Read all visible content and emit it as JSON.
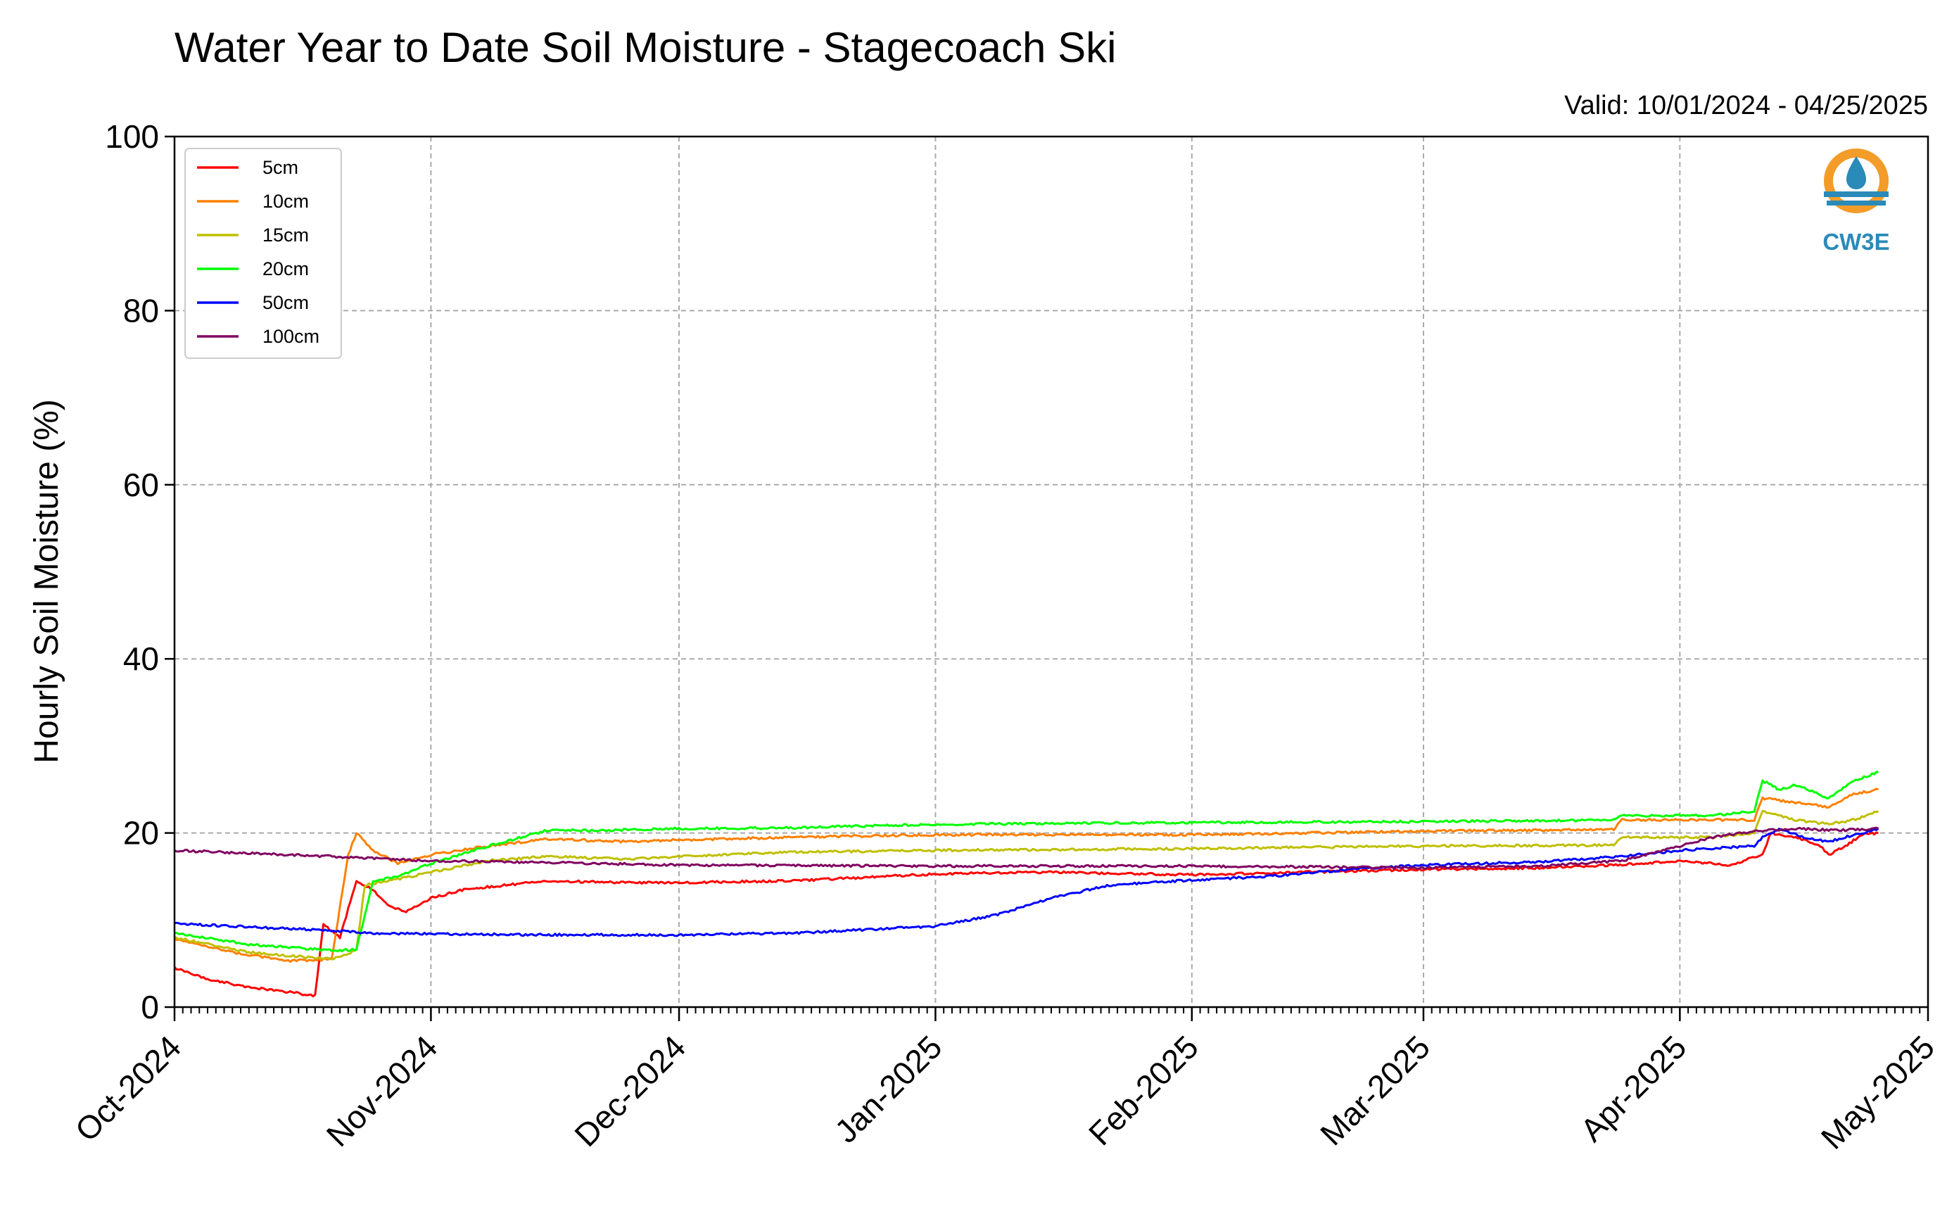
{
  "chart_data": {
    "type": "line",
    "title": "Water Year to Date Soil Moisture - Stagecoach Ski",
    "subtitle": "Valid: 10/01/2024 - 04/25/2025",
    "xlabel": "",
    "ylabel": "Hourly Soil Moisture (%)",
    "xlim": [
      "2024-10-01",
      "2025-05-01"
    ],
    "ylim": [
      0,
      100
    ],
    "yticks": [
      0,
      20,
      40,
      60,
      80,
      100
    ],
    "xticks": [
      {
        "date": "2024-10-01",
        "label": "Oct-2024"
      },
      {
        "date": "2024-11-01",
        "label": "Nov-2024"
      },
      {
        "date": "2024-12-01",
        "label": "Dec-2024"
      },
      {
        "date": "2025-01-01",
        "label": "Jan-2025"
      },
      {
        "date": "2025-02-01",
        "label": "Feb-2025"
      },
      {
        "date": "2025-03-01",
        "label": "Mar-2025"
      },
      {
        "date": "2025-04-01",
        "label": "Apr-2025"
      },
      {
        "date": "2025-05-01",
        "label": "May-2025"
      }
    ],
    "grid": true,
    "legend_position": "top-left",
    "series": [
      {
        "name": "5cm",
        "color": "#ff0000",
        "points": [
          [
            "2024-10-01",
            4.5
          ],
          [
            "2024-10-05",
            3.2
          ],
          [
            "2024-10-10",
            2.3
          ],
          [
            "2024-10-15",
            1.7
          ],
          [
            "2024-10-18",
            1.3
          ],
          [
            "2024-10-19",
            9.5
          ],
          [
            "2024-10-21",
            8.0
          ],
          [
            "2024-10-23",
            14.5
          ],
          [
            "2024-10-25",
            13.5
          ],
          [
            "2024-10-27",
            11.5
          ],
          [
            "2024-10-29",
            11.0
          ],
          [
            "2024-11-01",
            12.5
          ],
          [
            "2024-11-05",
            13.5
          ],
          [
            "2024-11-15",
            14.5
          ],
          [
            "2024-11-25",
            14.3
          ],
          [
            "2024-12-01",
            14.3
          ],
          [
            "2024-12-15",
            14.5
          ],
          [
            "2025-01-01",
            15.3
          ],
          [
            "2025-01-15",
            15.5
          ],
          [
            "2025-02-01",
            15.2
          ],
          [
            "2025-02-15",
            15.5
          ],
          [
            "2025-03-01",
            15.8
          ],
          [
            "2025-03-15",
            16.0
          ],
          [
            "2025-03-24",
            16.3
          ],
          [
            "2025-04-01",
            16.8
          ],
          [
            "2025-04-07",
            16.3
          ],
          [
            "2025-04-11",
            17.5
          ],
          [
            "2025-04-12",
            20.0
          ],
          [
            "2025-04-15",
            19.5
          ],
          [
            "2025-04-18",
            18.5
          ],
          [
            "2025-04-19",
            17.5
          ],
          [
            "2025-04-21",
            18.5
          ],
          [
            "2025-04-23",
            19.8
          ],
          [
            "2025-04-25",
            20.0
          ]
        ]
      },
      {
        "name": "10cm",
        "color": "#ff8000",
        "points": [
          [
            "2024-10-01",
            7.8
          ],
          [
            "2024-10-08",
            6.3
          ],
          [
            "2024-10-15",
            5.3
          ],
          [
            "2024-10-20",
            5.5
          ],
          [
            "2024-10-22",
            17.5
          ],
          [
            "2024-10-23",
            20.0
          ],
          [
            "2024-10-25",
            18.0
          ],
          [
            "2024-10-28",
            16.5
          ],
          [
            "2024-11-01",
            17.5
          ],
          [
            "2024-11-08",
            18.5
          ],
          [
            "2024-11-15",
            19.3
          ],
          [
            "2024-11-25",
            19.0
          ],
          [
            "2024-12-01",
            19.2
          ],
          [
            "2024-12-15",
            19.5
          ],
          [
            "2025-01-01",
            19.8
          ],
          [
            "2025-02-01",
            19.8
          ],
          [
            "2025-03-01",
            20.2
          ],
          [
            "2025-03-24",
            20.4
          ],
          [
            "2025-03-25",
            21.5
          ],
          [
            "2025-04-01",
            21.5
          ],
          [
            "2025-04-10",
            21.5
          ],
          [
            "2025-04-11",
            24.0
          ],
          [
            "2025-04-15",
            23.5
          ],
          [
            "2025-04-19",
            23.0
          ],
          [
            "2025-04-22",
            24.5
          ],
          [
            "2025-04-25",
            25.0
          ]
        ]
      },
      {
        "name": "15cm",
        "color": "#bfbf00",
        "points": [
          [
            "2024-10-01",
            8.0
          ],
          [
            "2024-10-10",
            6.3
          ],
          [
            "2024-10-20",
            5.5
          ],
          [
            "2024-10-23",
            6.5
          ],
          [
            "2024-10-24",
            14.0
          ],
          [
            "2024-10-27",
            14.5
          ],
          [
            "2024-11-01",
            15.5
          ],
          [
            "2024-11-08",
            16.8
          ],
          [
            "2024-11-15",
            17.3
          ],
          [
            "2024-11-25",
            17.0
          ],
          [
            "2024-12-01",
            17.3
          ],
          [
            "2024-12-15",
            17.8
          ],
          [
            "2025-01-01",
            18.0
          ],
          [
            "2025-02-01",
            18.2
          ],
          [
            "2025-03-01",
            18.5
          ],
          [
            "2025-03-24",
            18.6
          ],
          [
            "2025-03-25",
            19.5
          ],
          [
            "2025-04-05",
            19.5
          ],
          [
            "2025-04-10",
            20.0
          ],
          [
            "2025-04-11",
            22.5
          ],
          [
            "2025-04-15",
            21.5
          ],
          [
            "2025-04-19",
            21.0
          ],
          [
            "2025-04-22",
            21.5
          ],
          [
            "2025-04-25",
            22.5
          ]
        ]
      },
      {
        "name": "20cm",
        "color": "#00ff00",
        "points": [
          [
            "2024-10-01",
            8.5
          ],
          [
            "2024-10-10",
            7.2
          ],
          [
            "2024-10-20",
            6.5
          ],
          [
            "2024-10-23",
            6.6
          ],
          [
            "2024-10-25",
            14.5
          ],
          [
            "2024-10-28",
            15.0
          ],
          [
            "2024-11-01",
            16.5
          ],
          [
            "2024-11-08",
            18.5
          ],
          [
            "2024-11-15",
            20.3
          ],
          [
            "2024-11-22",
            20.3
          ],
          [
            "2024-12-01",
            20.5
          ],
          [
            "2024-12-15",
            20.6
          ],
          [
            "2025-01-01",
            21.0
          ],
          [
            "2025-02-01",
            21.2
          ],
          [
            "2025-03-01",
            21.3
          ],
          [
            "2025-03-24",
            21.5
          ],
          [
            "2025-03-25",
            22.0
          ],
          [
            "2025-04-05",
            22.0
          ],
          [
            "2025-04-10",
            22.5
          ],
          [
            "2025-04-11",
            26.0
          ],
          [
            "2025-04-13",
            25.0
          ],
          [
            "2025-04-15",
            25.5
          ],
          [
            "2025-04-19",
            24.0
          ],
          [
            "2025-04-22",
            26.0
          ],
          [
            "2025-04-25",
            27.0
          ]
        ]
      },
      {
        "name": "50cm",
        "color": "#0000ff",
        "points": [
          [
            "2024-10-01",
            9.6
          ],
          [
            "2024-10-10",
            9.2
          ],
          [
            "2024-10-20",
            8.8
          ],
          [
            "2024-10-25",
            8.5
          ],
          [
            "2024-11-01",
            8.4
          ],
          [
            "2024-11-15",
            8.3
          ],
          [
            "2024-12-01",
            8.3
          ],
          [
            "2024-12-15",
            8.5
          ],
          [
            "2025-01-01",
            9.3
          ],
          [
            "2025-01-08",
            10.5
          ],
          [
            "2025-01-15",
            12.5
          ],
          [
            "2025-01-22",
            14.0
          ],
          [
            "2025-02-01",
            14.6
          ],
          [
            "2025-02-10",
            15.0
          ],
          [
            "2025-02-20",
            15.8
          ],
          [
            "2025-03-01",
            16.3
          ],
          [
            "2025-03-15",
            16.7
          ],
          [
            "2025-03-25",
            17.3
          ],
          [
            "2025-04-01",
            18.0
          ],
          [
            "2025-04-10",
            18.5
          ],
          [
            "2025-04-11",
            19.5
          ],
          [
            "2025-04-13",
            20.5
          ],
          [
            "2025-04-16",
            19.5
          ],
          [
            "2025-04-19",
            19.0
          ],
          [
            "2025-04-21",
            19.5
          ],
          [
            "2025-04-25",
            20.5
          ]
        ]
      },
      {
        "name": "100cm",
        "color": "#800060",
        "points": [
          [
            "2024-10-01",
            18.0
          ],
          [
            "2024-10-15",
            17.5
          ],
          [
            "2024-11-01",
            16.8
          ],
          [
            "2024-11-15",
            16.6
          ],
          [
            "2024-12-01",
            16.3
          ],
          [
            "2025-01-01",
            16.2
          ],
          [
            "2025-02-01",
            16.2
          ],
          [
            "2025-03-01",
            16.0
          ],
          [
            "2025-03-15",
            16.2
          ],
          [
            "2025-03-25",
            16.8
          ],
          [
            "2025-04-01",
            18.5
          ],
          [
            "2025-04-05",
            19.5
          ],
          [
            "2025-04-10",
            20.2
          ],
          [
            "2025-04-15",
            20.5
          ],
          [
            "2025-04-20",
            20.3
          ],
          [
            "2025-04-25",
            20.5
          ]
        ]
      }
    ]
  },
  "logo": {
    "text": "CW3E",
    "colors": {
      "ring": "#f39c29",
      "wave": "#2a8ab8"
    }
  }
}
